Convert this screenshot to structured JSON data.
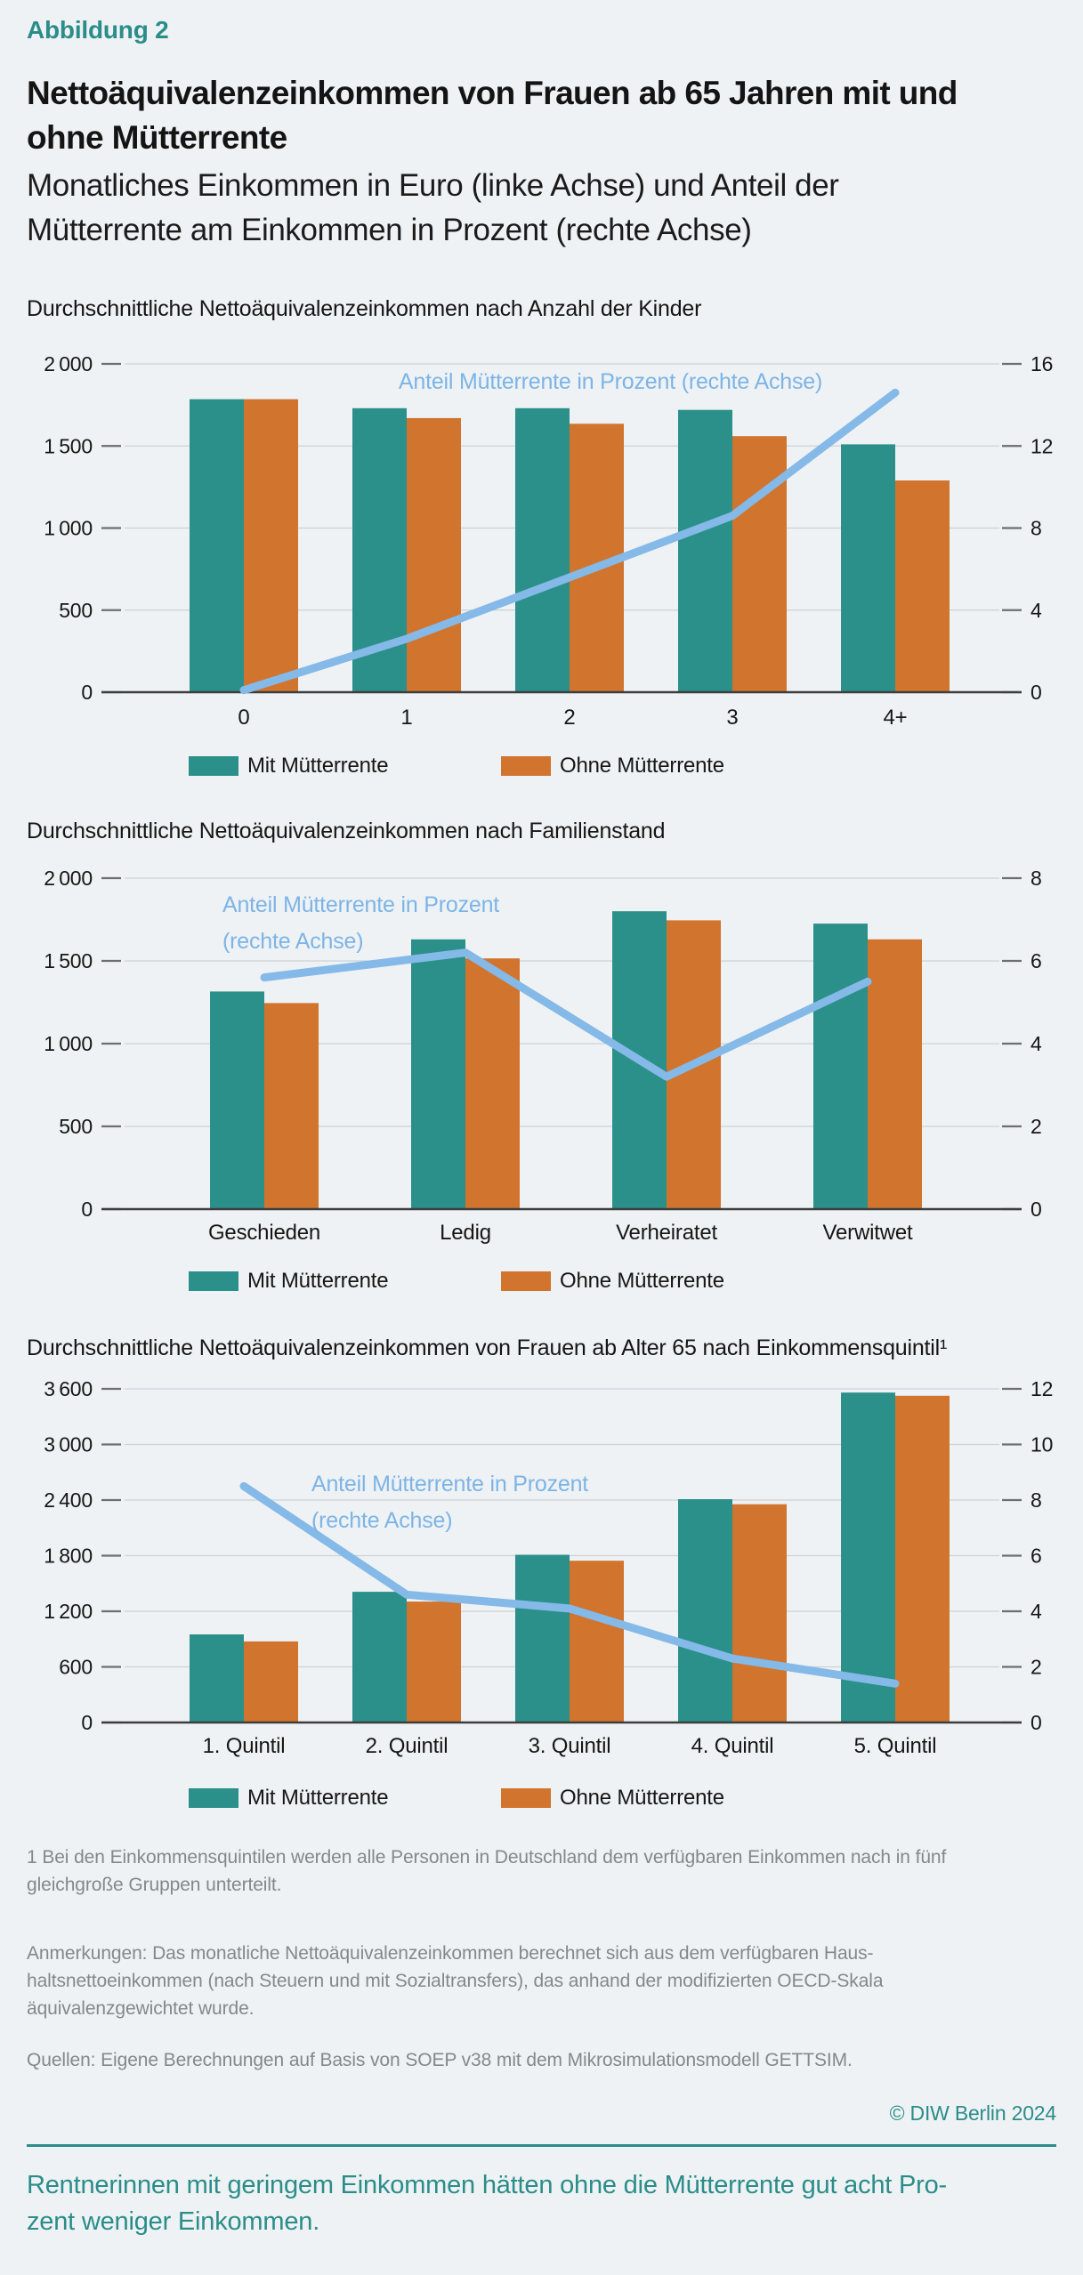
{
  "page": {
    "kicker": "Abbildung 2",
    "title_lines": [
      "Nettoäquivalenzeinkommen von Frauen ab 65 Jahren mit und",
      "ohne Mütterrente"
    ],
    "subtitle_lines": [
      "Monatliches Einkommen in Euro (linke Achse) und Anteil der",
      "Mütterrente am Einkommen in Prozent (rechte Achse)"
    ]
  },
  "colors": {
    "background": "#eef2f4",
    "teal": "#2b8f8a",
    "orange": "#d1742e",
    "line_blue": "#84b9e8",
    "annotation_blue": "#7db4e6",
    "grid": "#ccd2d5",
    "axis": "#3d3d3d",
    "tick": "#6e6e6e",
    "teal_text": "#2a8d89",
    "gray_text": "#85888b"
  },
  "chart_data": [
    {
      "type": "bar+line",
      "section_title": "Durchschnittliche Nettoäquivalenzeinkommen nach Anzahl der Kinder",
      "categories": [
        "0",
        "1",
        "2",
        "3",
        "4+"
      ],
      "series": [
        {
          "name": "Mit Mütterrente",
          "color": "teal",
          "values": [
            1785,
            1730,
            1730,
            1720,
            1510
          ]
        },
        {
          "name": "Ohne Mütterrente",
          "color": "orange",
          "values": [
            1785,
            1670,
            1635,
            1560,
            1290
          ]
        }
      ],
      "line_series": {
        "name": "Anteil Mütterrente in Prozent (rechte Achse)",
        "axis": "right",
        "values": [
          0.1,
          2.6,
          5.6,
          8.6,
          14.6
        ]
      },
      "left_axis": {
        "max": 2000,
        "tick_values": [
          2000,
          1500,
          1000,
          500,
          0
        ],
        "tick_labels": [
          "2 000",
          "1 500",
          "1 000",
          "500",
          "0"
        ]
      },
      "right_axis": {
        "max": 16,
        "tick_values": [
          16,
          12,
          8,
          4,
          0
        ],
        "tick_labels": [
          "16",
          "12",
          "8",
          "4",
          "0"
        ]
      },
      "annotation": {
        "lines": [
          "Anteil Mütterrente in Prozent (rechte Achse)"
        ]
      },
      "grid": true,
      "legend_position": "bottom"
    },
    {
      "type": "bar+line",
      "section_title": "Durchschnittliche Nettoäquivalenzeinkommen nach Familienstand",
      "categories": [
        "Geschieden",
        "Ledig",
        "Verheiratet",
        "Verwitwet"
      ],
      "series": [
        {
          "name": "Mit Mütterrente",
          "color": "teal",
          "values": [
            1315,
            1630,
            1800,
            1725
          ]
        },
        {
          "name": "Ohne Mütterrente",
          "color": "orange",
          "values": [
            1245,
            1515,
            1745,
            1630
          ]
        }
      ],
      "line_series": {
        "name": "Anteil Mütterrente in Prozent (rechte Achse)",
        "axis": "right",
        "values": [
          5.6,
          6.2,
          3.2,
          5.5
        ]
      },
      "left_axis": {
        "max": 2000,
        "tick_values": [
          2000,
          1500,
          1000,
          500,
          0
        ],
        "tick_labels": [
          "2 000",
          "1 500",
          "1 000",
          "500",
          "0"
        ]
      },
      "right_axis": {
        "max": 8,
        "tick_values": [
          8,
          6,
          4,
          2,
          0
        ],
        "tick_labels": [
          "8",
          "6",
          "4",
          "2",
          "0"
        ]
      },
      "annotation": {
        "lines": [
          "Anteil Mütterrente in Prozent",
          "(rechte Achse)"
        ]
      },
      "grid": true,
      "legend_position": "bottom"
    },
    {
      "type": "bar+line",
      "section_title": "Durchschnittliche Nettoäquivalenzeinkommen von Frauen ab Alter 65 nach Einkommensquintil¹",
      "categories": [
        "1. Quintil",
        "2. Quintil",
        "3. Quintil",
        "4. Quintil",
        "5. Quintil"
      ],
      "series": [
        {
          "name": "Mit Mütterrente",
          "color": "teal",
          "values": [
            950,
            1410,
            1810,
            2410,
            3560
          ]
        },
        {
          "name": "Ohne Mütterrente",
          "color": "orange",
          "values": [
            875,
            1305,
            1745,
            2355,
            3525
          ]
        }
      ],
      "line_series": {
        "name": "Anteil Mütterrente in Prozent (rechte Achse)",
        "axis": "right",
        "values": [
          8.5,
          4.6,
          4.1,
          2.3,
          1.4
        ]
      },
      "left_axis": {
        "max": 3600,
        "tick_values": [
          3600,
          3000,
          2400,
          1800,
          1200,
          600,
          0
        ],
        "tick_labels": [
          "3 600",
          "3 000",
          "2 400",
          "1 800",
          "1 200",
          "600",
          "0"
        ]
      },
      "right_axis": {
        "max": 12,
        "tick_values": [
          12,
          10,
          8,
          6,
          4,
          2,
          0
        ],
        "tick_labels": [
          "12",
          "10",
          "8",
          "6",
          "4",
          "2",
          "0"
        ]
      },
      "annotation": {
        "lines": [
          "Anteil Mütterrente in Prozent",
          "(rechte Achse)"
        ]
      },
      "grid": true,
      "legend_position": "bottom"
    }
  ],
  "footer": {
    "footnote_lines": [
      "1  Bei den Einkommensquintilen werden alle Personen in Deutschland dem verfügbaren Einkommen nach in fünf",
      "gleichgroße Gruppen unterteilt."
    ],
    "anmerkungen_lines": [
      "Anmerkungen: Das monatliche Nettoäquivalenzeinkommen berechnet sich aus dem verfügbaren Haus-",
      "haltsnettoeinkommen (nach Steuern und mit Sozialtransfers), das anhand der modifizierten OECD-Skala",
      "äquivalenzgewichtet wurde."
    ],
    "quellen": "Quellen: Eigene Berechnungen auf Basis von SOEP v38 mit dem Mikrosimulationsmodell GETTSIM.",
    "copyright": "© DIW Berlin 2024",
    "statement_lines": [
      "Rentnerinnen mit geringem Einkommen hätten ohne die Mütterrente gut acht Pro-",
      "zent weniger Einkommen."
    ]
  }
}
